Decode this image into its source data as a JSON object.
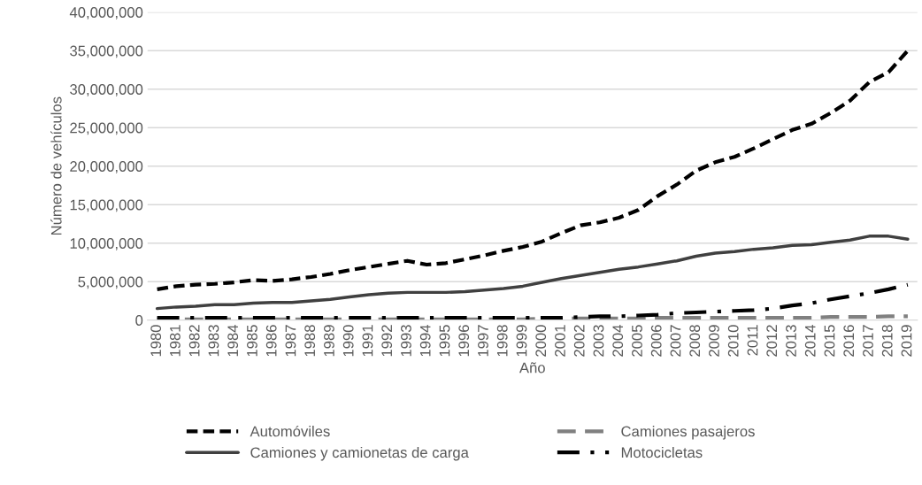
{
  "chart_data": {
    "type": "line",
    "xlabel": "Año",
    "ylabel": "Número de vehículos",
    "categories": [
      "1980",
      "1981",
      "1982",
      "1983",
      "1984",
      "1985",
      "1986",
      "1987",
      "1988",
      "1989",
      "1990",
      "1991",
      "1992",
      "1993",
      "1994",
      "1995",
      "1996",
      "1997",
      "1998",
      "1999",
      "2000",
      "2001",
      "2002",
      "2003",
      "2004",
      "2005",
      "2006",
      "2007",
      "2008",
      "2009",
      "2010",
      "2011",
      "2012",
      "2013",
      "2014",
      "2015",
      "2016",
      "2017",
      "2018",
      "2019"
    ],
    "series": [
      {
        "name": "Automóviles",
        "color": "#000000",
        "line_style": "dashed",
        "values": [
          4000000,
          4400000,
          4600000,
          4700000,
          4900000,
          5200000,
          5100000,
          5300000,
          5600000,
          6000000,
          6500000,
          6900000,
          7300000,
          7700000,
          7200000,
          7400000,
          7900000,
          8400000,
          9000000,
          9500000,
          10200000,
          11300000,
          12300000,
          12700000,
          13300000,
          14300000,
          16100000,
          17600000,
          19400000,
          20500000,
          21200000,
          22300000,
          23500000,
          24700000,
          25500000,
          26900000,
          28500000,
          30900000,
          32200000,
          35000000
        ]
      },
      {
        "name": "Camiones pasajeros",
        "color": "#808080",
        "line_style": "longdash",
        "values": [
          100000,
          100000,
          100000,
          100000,
          100000,
          100000,
          100000,
          100000,
          100000,
          100000,
          100000,
          100000,
          100000,
          100000,
          100000,
          100000,
          100000,
          100000,
          100000,
          100000,
          200000,
          200000,
          200000,
          200000,
          200000,
          200000,
          300000,
          300000,
          300000,
          300000,
          300000,
          300000,
          300000,
          300000,
          300000,
          400000,
          400000,
          400000,
          500000,
          500000
        ]
      },
      {
        "name": "Camiones y camionetas de carga",
        "color": "#404040",
        "line_style": "solid",
        "values": [
          1500000,
          1700000,
          1800000,
          2000000,
          2000000,
          2200000,
          2300000,
          2300000,
          2500000,
          2700000,
          3000000,
          3300000,
          3500000,
          3600000,
          3600000,
          3600000,
          3700000,
          3900000,
          4100000,
          4400000,
          4900000,
          5400000,
          5800000,
          6200000,
          6600000,
          6900000,
          7300000,
          7700000,
          8300000,
          8700000,
          8900000,
          9200000,
          9400000,
          9700000,
          9800000,
          10100000,
          10400000,
          10900000,
          10900000,
          10500000
        ]
      },
      {
        "name": "Motocicletas",
        "color": "#000000",
        "line_style": "dashdot",
        "values": [
          300000,
          300000,
          300000,
          300000,
          300000,
          300000,
          300000,
          300000,
          300000,
          300000,
          300000,
          300000,
          300000,
          300000,
          300000,
          300000,
          300000,
          300000,
          300000,
          300000,
          300000,
          300000,
          400000,
          500000,
          500000,
          600000,
          700000,
          900000,
          1000000,
          1100000,
          1200000,
          1300000,
          1500000,
          1900000,
          2200000,
          2700000,
          3100000,
          3500000,
          4000000,
          4600000
        ]
      }
    ],
    "ylim": [
      0,
      40000000
    ],
    "yticks": [
      {
        "value": 0,
        "label": "0"
      },
      {
        "value": 5000000,
        "label": "5,000,000"
      },
      {
        "value": 10000000,
        "label": "10,000,000"
      },
      {
        "value": 15000000,
        "label": "15,000,000"
      },
      {
        "value": 20000000,
        "label": "20,000,000"
      },
      {
        "value": 25000000,
        "label": "25,000,000"
      },
      {
        "value": 30000000,
        "label": "30,000,000"
      },
      {
        "value": 35000000,
        "label": "35,000,000"
      },
      {
        "value": 40000000,
        "label": "40,000,000"
      }
    ],
    "grid": "y",
    "legend": "bottom"
  }
}
